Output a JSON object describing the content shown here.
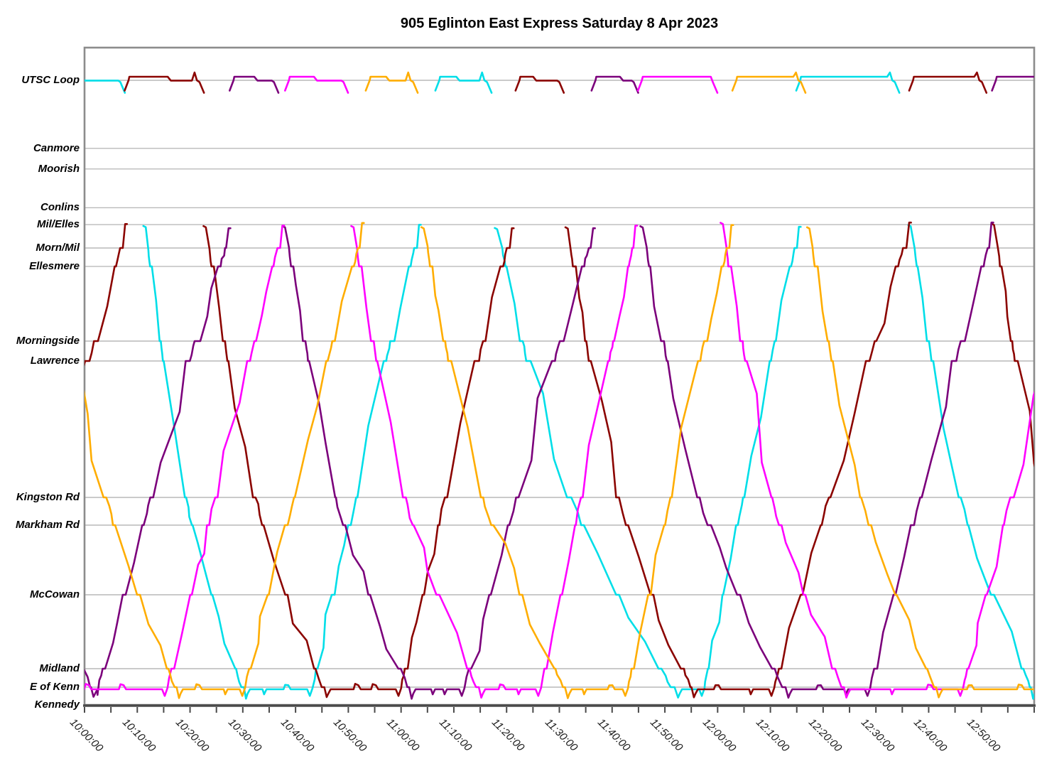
{
  "title": "905 Eglinton East Express Saturday 8 Apr 2023",
  "chart_data": {
    "type": "line",
    "subtype": "marey-time-distance-diagram",
    "title": "905 Eglinton East Express Saturday 8 Apr 2023",
    "grid": true,
    "legend": false,
    "time_axis": {
      "start": "10:00:00",
      "end": "13:00:00",
      "minor_tick_minutes": 5,
      "major_tick_minutes": 10,
      "tick_labels": [
        "10:00:00",
        "10:10:00",
        "10:20:00",
        "10:30:00",
        "10:40:00",
        "10:50:00",
        "11:00:00",
        "11:10:00",
        "11:20:00",
        "11:30:00",
        "11:40:00",
        "11:50:00",
        "12:00:00",
        "12:10:00",
        "12:20:00",
        "12:30:00",
        "12:40:00",
        "12:50:00"
      ]
    },
    "stations": [
      {
        "name": "UTSC Loop",
        "pos": 1.0
      },
      {
        "name": "Canmore",
        "pos": 0.891
      },
      {
        "name": "Moorish",
        "pos": 0.858
      },
      {
        "name": "Conlins",
        "pos": 0.796
      },
      {
        "name": "Mil/Elles",
        "pos": 0.769
      },
      {
        "name": "Morn/Mil",
        "pos": 0.7315
      },
      {
        "name": "Ellesmere",
        "pos": 0.702
      },
      {
        "name": "Morningside",
        "pos": 0.5825
      },
      {
        "name": "Lawrence",
        "pos": 0.5506
      },
      {
        "name": "Kingston Rd",
        "pos": 0.3322
      },
      {
        "name": "Markham Rd",
        "pos": 0.2878
      },
      {
        "name": "McCowan",
        "pos": 0.1763
      },
      {
        "name": "Midland",
        "pos": 0.058
      },
      {
        "name": "E of Kenn",
        "pos": 0.0284
      },
      {
        "name": "Kennedy",
        "pos": 0.0,
        "gridline": false
      }
    ],
    "series": [
      {
        "name": "vehicle-cyan",
        "color": "#00DEE8",
        "utsc_loop_dwells_min": [
          [
            -4,
            6.7
          ],
          [
            67.4,
            76.2
          ],
          [
            135.8,
            153.5
          ]
        ],
        "runs": [
          {
            "sb": [
              11.6,
              30.6
            ],
            "dwell": [
              30.6,
              43.2
            ],
            "nb": [
              43.2,
              63.4
            ]
          },
          {
            "sb": [
              78.2,
              112.5
            ],
            "dwell": [
              112.5,
              117.5
            ],
            "nb": [
              117.5,
              135.4
            ]
          },
          {
            "sb": [
              156.6,
              179.8
            ],
            "dwell": [
              179.8,
              184
            ],
            "nb": null
          }
        ]
      },
      {
        "name": "vehicle-dark-red",
        "color": "#8B0400",
        "utsc_loop_dwells_min": [
          [
            8.5,
            21.7
          ],
          [
            82.6,
            89.9
          ],
          [
            157.2,
            170
          ]
        ],
        "runs": [
          {
            "sb": null,
            "dwell": null,
            "nb": [
              -14.7,
              7.7
            ]
          },
          {
            "sb": [
              23,
              45.9
            ],
            "dwell": [
              45.9,
              60
            ],
            "nb": [
              60,
              81
            ]
          },
          {
            "sb": [
              91.6,
              115.5
            ],
            "dwell": [
              115.5,
              130.7
            ],
            "nb": [
              130.7,
              156.3
            ]
          },
          {
            "sb": [
              172.4,
              196
            ],
            "dwell": null,
            "nb": null
          }
        ]
      },
      {
        "name": "vehicle-purple",
        "color": "#7B007B",
        "utsc_loop_dwells_min": [
          [
            28.4,
            35.8
          ],
          [
            97,
            104
          ],
          [
            172.9,
            184
          ]
        ],
        "runs": [
          {
            "sb": [
              -22,
              1.7
            ],
            "dwell": [
              1.7,
              2.6
            ],
            "nb": [
              2.6,
              27.3
            ]
          },
          {
            "sb": [
              38,
              62
            ],
            "dwell": [
              62,
              72
            ],
            "nb": [
              72,
              96.4
            ]
          },
          {
            "sb": [
              105.8,
              133.4
            ],
            "dwell": [
              133.4,
              148.9
            ],
            "nb": [
              148.9,
              171.9
            ]
          }
        ]
      },
      {
        "name": "vehicle-magenta",
        "color": "#FF00FF",
        "utsc_loop_dwells_min": [
          [
            38.9,
            49
          ],
          [
            105.8,
            119
          ]
        ],
        "runs": [
          {
            "sb": null,
            "dwell": [
              -8,
              15.7
            ],
            "nb": [
              15.7,
              37.5
            ]
          },
          {
            "sb": [
              51,
              75.2
            ],
            "dwell": [
              75.2,
              86.5
            ],
            "nb": [
              86.5,
              104.4
            ]
          },
          {
            "sb": [
              121,
              144.4
            ],
            "dwell": [
              144.4,
              166.5
            ],
            "nb": [
              166.5,
              190
            ]
          }
        ]
      },
      {
        "name": "vehicle-orange",
        "color": "#FFAD00",
        "utsc_loop_dwells_min": [
          [
            54.2,
            62.2
          ],
          [
            123.7,
            135.7
          ]
        ],
        "runs": [
          {
            "sb": [
              -5.5,
              17.9
            ],
            "dwell": [
              17.9,
              30.4
            ],
            "nb": [
              30.4,
              52.6
            ]
          },
          {
            "sb": [
              64.3,
              91.6
            ],
            "dwell": [
              91.6,
              103
            ],
            "nb": [
              103,
              122.6
            ]
          },
          {
            "sb": [
              137.4,
              161.9
            ],
            "dwell": [
              161.9,
              184
            ],
            "nb": null
          }
        ]
      }
    ]
  }
}
